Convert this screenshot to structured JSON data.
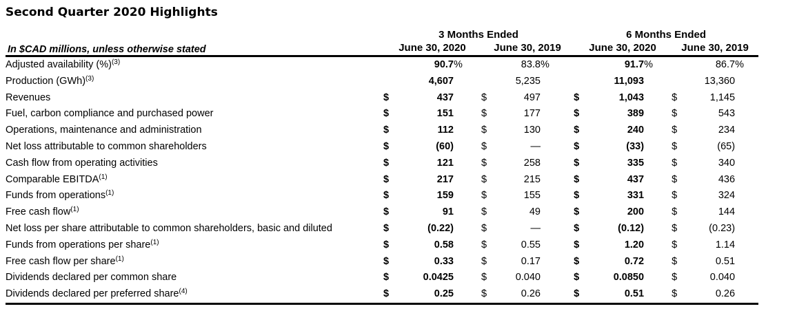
{
  "title": "Second Quarter 2020 Highlights",
  "colors": {
    "text": "#000000",
    "background": "#ffffff",
    "rule": "#000000"
  },
  "table": {
    "unit_note": "In $CAD millions, unless otherwise stated",
    "groups": [
      {
        "label": "3 Months Ended",
        "columns": [
          "June 30, 2020",
          "June 30, 2019"
        ]
      },
      {
        "label": "6 Months Ended",
        "columns": [
          "June 30, 2020",
          "June 30, 2019"
        ]
      }
    ],
    "rows": [
      {
        "label": "Adjusted availability (%)",
        "sup": "(3)",
        "cells": [
          {
            "cur": "",
            "val": "90.7",
            "pct": "%"
          },
          {
            "cur": "",
            "val": "83.8",
            "pct": "%"
          },
          {
            "cur": "",
            "val": "91.7",
            "pct": "%"
          },
          {
            "cur": "",
            "val": "86.7",
            "pct": "%"
          }
        ]
      },
      {
        "label": "Production (GWh)",
        "sup": "(3)",
        "cells": [
          {
            "cur": "",
            "val": "4,607",
            "pct": ""
          },
          {
            "cur": "",
            "val": "5,235",
            "pct": ""
          },
          {
            "cur": "",
            "val": "11,093",
            "pct": ""
          },
          {
            "cur": "",
            "val": "13,360",
            "pct": ""
          }
        ]
      },
      {
        "label": "Revenues",
        "sup": "",
        "cells": [
          {
            "cur": "$",
            "val": "437",
            "pct": ""
          },
          {
            "cur": "$",
            "val": "497",
            "pct": ""
          },
          {
            "cur": "$",
            "val": "1,043",
            "pct": ""
          },
          {
            "cur": "$",
            "val": "1,145",
            "pct": ""
          }
        ]
      },
      {
        "label": "Fuel, carbon compliance and purchased power",
        "sup": "",
        "cells": [
          {
            "cur": "$",
            "val": "151",
            "pct": ""
          },
          {
            "cur": "$",
            "val": "177",
            "pct": ""
          },
          {
            "cur": "$",
            "val": "389",
            "pct": ""
          },
          {
            "cur": "$",
            "val": "543",
            "pct": ""
          }
        ]
      },
      {
        "label": "Operations, maintenance and administration",
        "sup": "",
        "cells": [
          {
            "cur": "$",
            "val": "112",
            "pct": ""
          },
          {
            "cur": "$",
            "val": "130",
            "pct": ""
          },
          {
            "cur": "$",
            "val": "240",
            "pct": ""
          },
          {
            "cur": "$",
            "val": "234",
            "pct": ""
          }
        ]
      },
      {
        "label": "Net loss attributable to common shareholders",
        "sup": "",
        "cells": [
          {
            "cur": "$",
            "val": "(60)",
            "pct": ""
          },
          {
            "cur": "$",
            "val": "—",
            "pct": ""
          },
          {
            "cur": "$",
            "val": "(33)",
            "pct": ""
          },
          {
            "cur": "$",
            "val": "(65)",
            "pct": ""
          }
        ]
      },
      {
        "label": "Cash flow from operating activities",
        "sup": "",
        "cells": [
          {
            "cur": "$",
            "val": "121",
            "pct": ""
          },
          {
            "cur": "$",
            "val": "258",
            "pct": ""
          },
          {
            "cur": "$",
            "val": "335",
            "pct": ""
          },
          {
            "cur": "$",
            "val": "340",
            "pct": ""
          }
        ]
      },
      {
        "label": "Comparable EBITDA",
        "sup": "(1)",
        "cells": [
          {
            "cur": "$",
            "val": "217",
            "pct": ""
          },
          {
            "cur": "$",
            "val": "215",
            "pct": ""
          },
          {
            "cur": "$",
            "val": "437",
            "pct": ""
          },
          {
            "cur": "$",
            "val": "436",
            "pct": ""
          }
        ]
      },
      {
        "label": "Funds from operations",
        "sup": "(1)",
        "cells": [
          {
            "cur": "$",
            "val": "159",
            "pct": ""
          },
          {
            "cur": "$",
            "val": "155",
            "pct": ""
          },
          {
            "cur": "$",
            "val": "331",
            "pct": ""
          },
          {
            "cur": "$",
            "val": "324",
            "pct": ""
          }
        ]
      },
      {
        "label": "Free cash flow",
        "sup": "(1)",
        "cells": [
          {
            "cur": "$",
            "val": "91",
            "pct": ""
          },
          {
            "cur": "$",
            "val": "49",
            "pct": ""
          },
          {
            "cur": "$",
            "val": "200",
            "pct": ""
          },
          {
            "cur": "$",
            "val": "144",
            "pct": ""
          }
        ]
      },
      {
        "label": "Net loss per share attributable to common shareholders, basic and diluted",
        "sup": "",
        "cells": [
          {
            "cur": "$",
            "val": "(0.22)",
            "pct": ""
          },
          {
            "cur": "$",
            "val": "—",
            "pct": ""
          },
          {
            "cur": "$",
            "val": "(0.12)",
            "pct": ""
          },
          {
            "cur": "$",
            "val": "(0.23)",
            "pct": ""
          }
        ]
      },
      {
        "label": "Funds from operations per share",
        "sup": "(1)",
        "cells": [
          {
            "cur": "$",
            "val": "0.58",
            "pct": ""
          },
          {
            "cur": "$",
            "val": "0.55",
            "pct": ""
          },
          {
            "cur": "$",
            "val": "1.20",
            "pct": ""
          },
          {
            "cur": "$",
            "val": "1.14",
            "pct": ""
          }
        ]
      },
      {
        "label": "Free cash flow per share",
        "sup": "(1)",
        "cells": [
          {
            "cur": "$",
            "val": "0.33",
            "pct": ""
          },
          {
            "cur": "$",
            "val": "0.17",
            "pct": ""
          },
          {
            "cur": "$",
            "val": "0.72",
            "pct": ""
          },
          {
            "cur": "$",
            "val": "0.51",
            "pct": ""
          }
        ]
      },
      {
        "label": "Dividends declared per common share",
        "sup": "",
        "cells": [
          {
            "cur": "$",
            "val": "0.0425",
            "pct": ""
          },
          {
            "cur": "$",
            "val": "0.040",
            "pct": ""
          },
          {
            "cur": "$",
            "val": "0.0850",
            "pct": ""
          },
          {
            "cur": "$",
            "val": "0.040",
            "pct": ""
          }
        ]
      },
      {
        "label": "Dividends declared per preferred share",
        "sup": "(4)",
        "cells": [
          {
            "cur": "$",
            "val": "0.25",
            "pct": ""
          },
          {
            "cur": "$",
            "val": "0.26",
            "pct": ""
          },
          {
            "cur": "$",
            "val": "0.51",
            "pct": ""
          },
          {
            "cur": "$",
            "val": "0.26",
            "pct": ""
          }
        ]
      }
    ]
  }
}
